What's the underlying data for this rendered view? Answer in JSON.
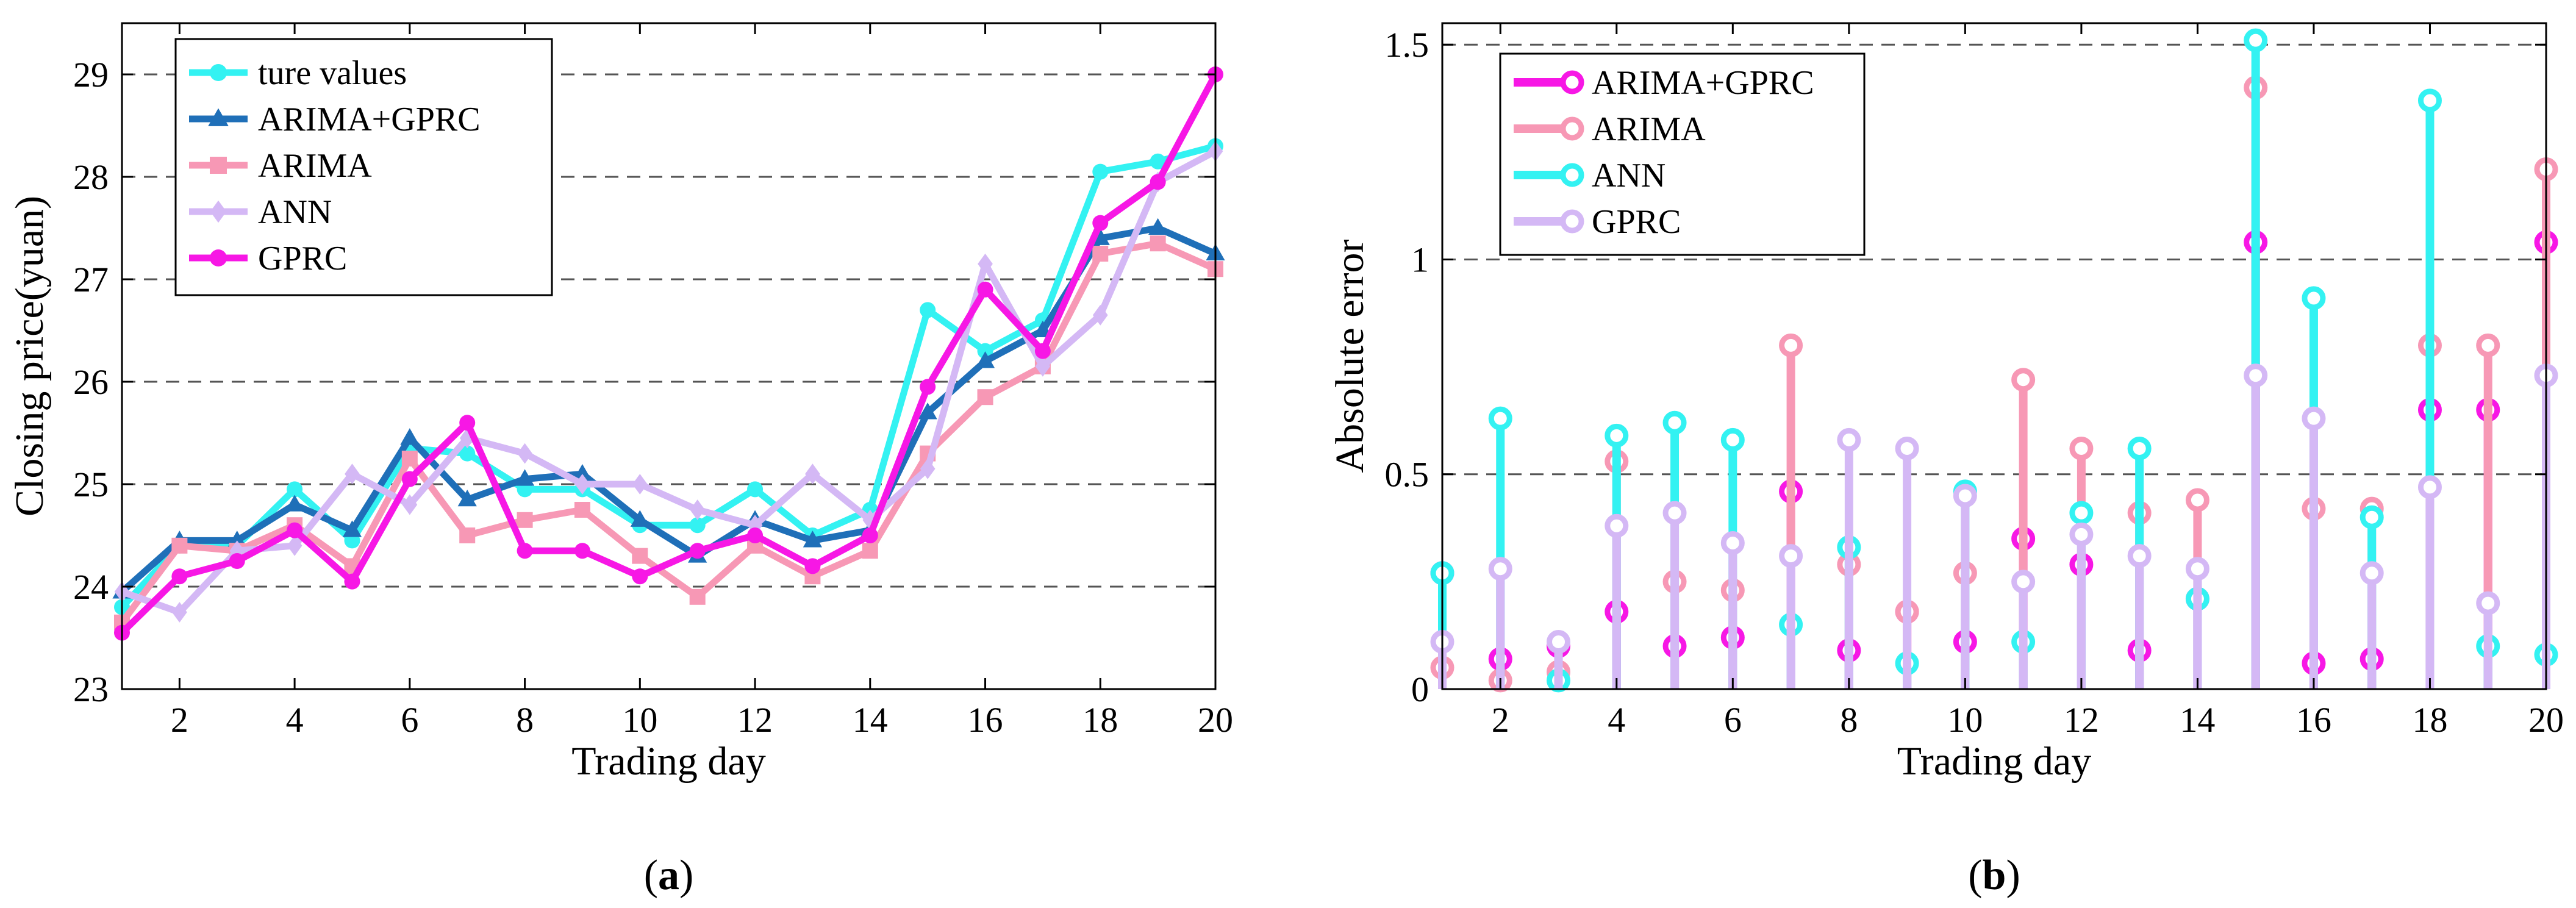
{
  "chart_data": [
    {
      "id": "a",
      "type": "line",
      "caption_letter": "a",
      "xlabel": "Trading day",
      "ylabel": "Closing price(yuan)",
      "xlim": [
        1,
        20
      ],
      "ylim": [
        23,
        29.5
      ],
      "xticks": [
        2,
        4,
        6,
        8,
        10,
        12,
        14,
        16,
        18,
        20
      ],
      "yticks": [
        23,
        24,
        25,
        26,
        27,
        28,
        29
      ],
      "grid": "dashed-horizontal",
      "legend_position": "top-left",
      "x": [
        1,
        2,
        3,
        4,
        5,
        6,
        7,
        8,
        9,
        10,
        11,
        12,
        13,
        14,
        15,
        16,
        17,
        18,
        19,
        20
      ],
      "series": [
        {
          "name": "ture values",
          "color": "#33f2f2",
          "marker": "circle",
          "values": [
            23.8,
            24.4,
            24.4,
            24.95,
            24.45,
            25.35,
            25.3,
            24.95,
            24.95,
            24.6,
            24.6,
            24.95,
            24.5,
            24.75,
            26.7,
            26.3,
            26.6,
            28.05,
            28.15,
            28.3
          ]
        },
        {
          "name": "ARIMA+GPRC",
          "color": "#1f6fb8",
          "marker": "triangle",
          "values": [
            23.95,
            24.45,
            24.45,
            24.8,
            24.55,
            25.45,
            24.85,
            25.05,
            25.1,
            24.65,
            24.3,
            24.65,
            24.45,
            24.55,
            25.7,
            26.2,
            26.5,
            27.4,
            27.5,
            27.25
          ]
        },
        {
          "name": "ARIMA",
          "color": "#f798b5",
          "marker": "square",
          "values": [
            23.65,
            24.4,
            24.35,
            24.6,
            24.2,
            25.25,
            24.5,
            24.65,
            24.75,
            24.3,
            23.9,
            24.4,
            24.1,
            24.35,
            25.3,
            25.85,
            26.15,
            27.25,
            27.35,
            27.1
          ]
        },
        {
          "name": "ANN",
          "color": "#d4b8f5",
          "marker": "diamond",
          "values": [
            23.95,
            23.75,
            24.35,
            24.4,
            25.1,
            24.8,
            25.45,
            25.3,
            25.0,
            25.0,
            24.75,
            24.6,
            25.1,
            24.65,
            25.15,
            27.15,
            26.15,
            26.65,
            27.95,
            28.25
          ]
        },
        {
          "name": "GPRC",
          "color": "#f717e5",
          "marker": "circle",
          "values": [
            23.55,
            24.1,
            24.25,
            24.55,
            24.05,
            25.05,
            25.6,
            24.35,
            24.35,
            24.1,
            24.35,
            24.5,
            24.2,
            24.5,
            25.95,
            26.9,
            26.3,
            27.55,
            27.95,
            29.0
          ]
        }
      ]
    },
    {
      "id": "b",
      "type": "stem",
      "caption_letter": "b",
      "xlabel": "Trading day",
      "ylabel": "Absolute error",
      "xlim": [
        1,
        20
      ],
      "ylim": [
        0,
        1.55
      ],
      "xticks": [
        2,
        4,
        6,
        8,
        10,
        12,
        14,
        16,
        18,
        20
      ],
      "yticks": [
        0,
        0.5,
        1,
        1.5
      ],
      "ytick_labels": [
        "0",
        "0.5",
        "1",
        "1.5"
      ],
      "grid": "dashed-horizontal",
      "legend_position": "top-left",
      "x": [
        1,
        2,
        3,
        4,
        5,
        6,
        7,
        8,
        9,
        10,
        11,
        12,
        13,
        14,
        15,
        16,
        17,
        18,
        19,
        20
      ],
      "series": [
        {
          "name": "ARIMA+GPRC",
          "color": "#f717e5",
          "values": [
            0.27,
            0.07,
            0.1,
            0.18,
            0.1,
            0.12,
            0.46,
            0.09,
            0.18,
            0.11,
            0.35,
            0.29,
            0.09,
            0.21,
            1.04,
            0.06,
            0.07,
            0.65,
            0.65,
            1.04
          ]
        },
        {
          "name": "ARIMA",
          "color": "#f798b5",
          "values": [
            0.05,
            0.02,
            0.04,
            0.53,
            0.25,
            0.23,
            0.8,
            0.29,
            0.18,
            0.27,
            0.72,
            0.56,
            0.41,
            0.44,
            1.4,
            0.42,
            0.42,
            0.8,
            0.8,
            1.21
          ]
        },
        {
          "name": "ANN",
          "color": "#33f2f2",
          "values": [
            0.27,
            0.63,
            0.02,
            0.59,
            0.62,
            0.58,
            0.15,
            0.33,
            0.06,
            0.46,
            0.11,
            0.41,
            0.56,
            0.21,
            1.51,
            0.91,
            0.4,
            1.37,
            0.1,
            0.08
          ]
        },
        {
          "name": "GPRC",
          "color": "#d4b8f5",
          "values": [
            0.11,
            0.28,
            0.11,
            0.38,
            0.41,
            0.34,
            0.31,
            0.58,
            0.56,
            0.45,
            0.25,
            0.36,
            0.31,
            0.28,
            0.73,
            0.63,
            0.27,
            0.47,
            0.2,
            0.73
          ]
        }
      ]
    }
  ]
}
